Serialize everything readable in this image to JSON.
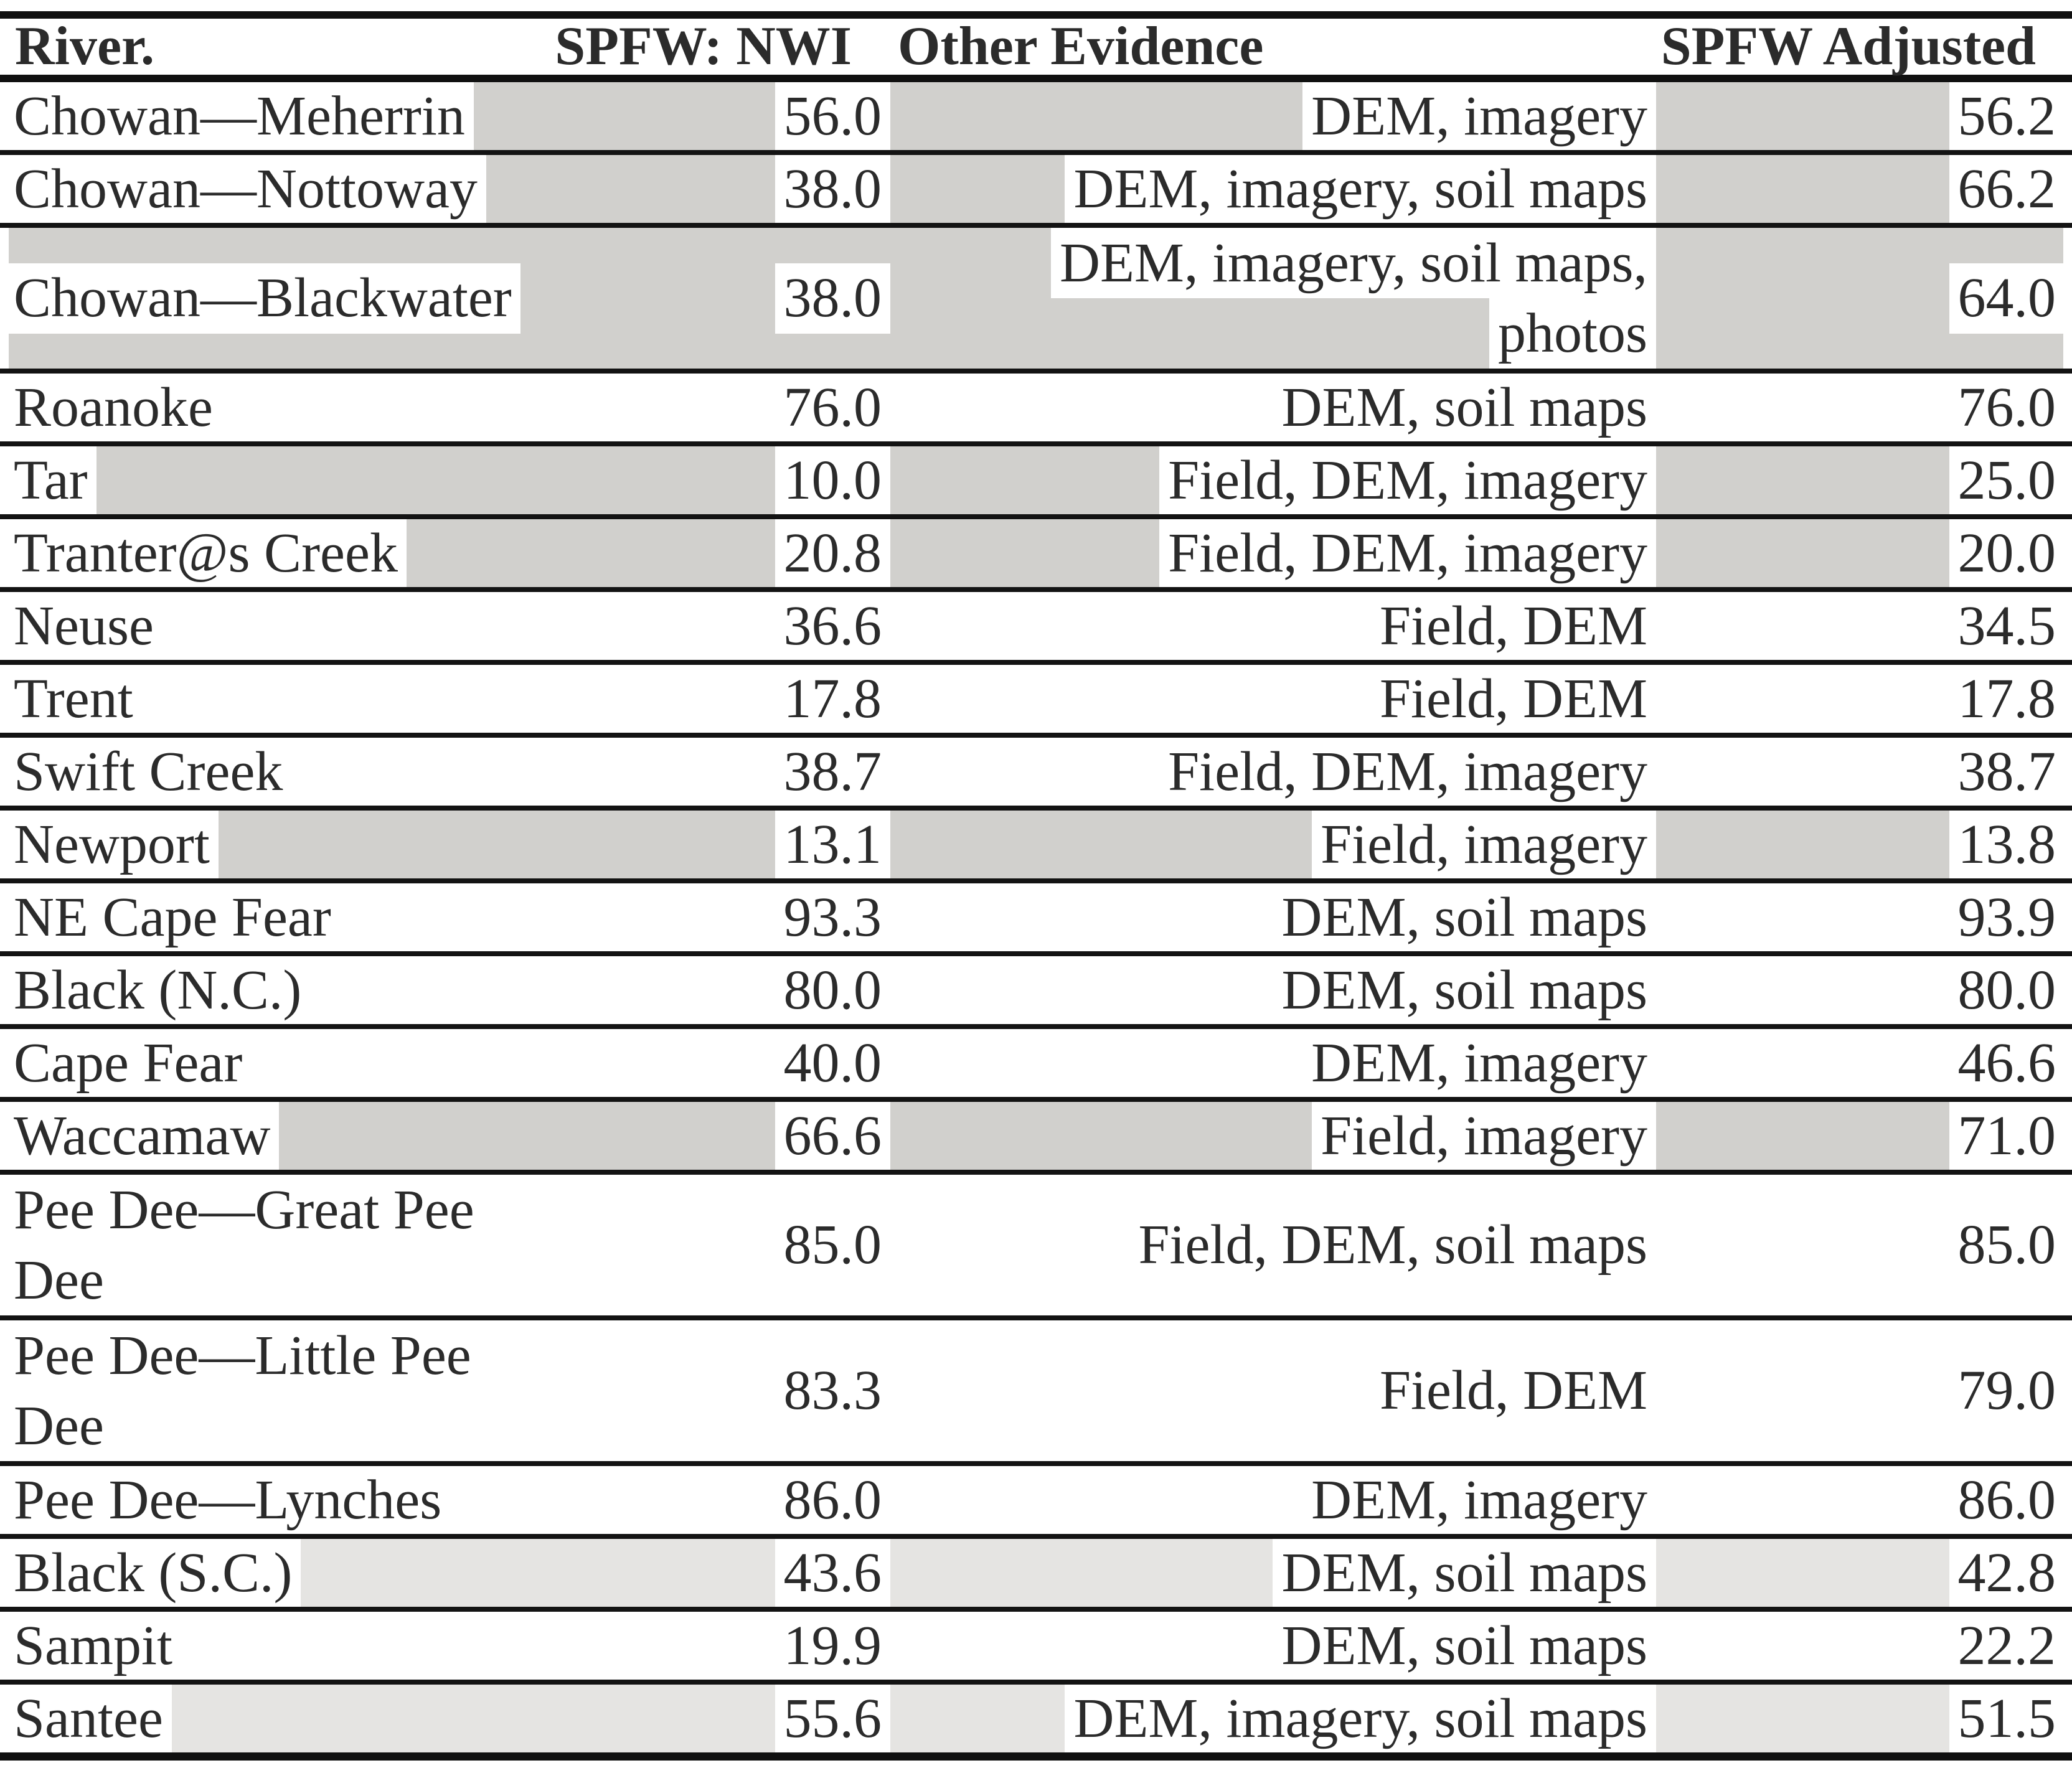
{
  "table": {
    "columns": [
      {
        "key": "river",
        "label": "River."
      },
      {
        "key": "nwi",
        "label": "SPFW: NWI"
      },
      {
        "key": "evidence",
        "label": "Other Evidence"
      },
      {
        "key": "adjusted",
        "label": "SPFW Adjusted"
      }
    ],
    "shade_colors": {
      "dark": "#d1d0cd",
      "light": "#e5e4e2",
      "none": "#ffffff"
    },
    "border_color": "#101010",
    "text_color": "#2b2b2b",
    "rows": [
      {
        "river": [
          "Chowan—Meherrin"
        ],
        "nwi": "56.0",
        "evidence": [
          "DEM, imagery"
        ],
        "adjusted": "56.2",
        "shade": "dark"
      },
      {
        "river": [
          "Chowan—Nottoway"
        ],
        "nwi": "38.0",
        "evidence": [
          "DEM, imagery, soil maps"
        ],
        "adjusted": "66.2",
        "shade": "dark"
      },
      {
        "river": [
          "Chowan—Blackwater"
        ],
        "nwi": "38.0",
        "evidence": [
          "DEM, imagery, soil maps,",
          "photos"
        ],
        "adjusted": "64.0",
        "shade": "dark"
      },
      {
        "river": [
          "Roanoke"
        ],
        "nwi": "76.0",
        "evidence": [
          "DEM, soil maps"
        ],
        "adjusted": "76.0",
        "shade": "none"
      },
      {
        "river": [
          "Tar"
        ],
        "nwi": "10.0",
        "evidence": [
          "Field, DEM, imagery"
        ],
        "adjusted": "25.0",
        "shade": "dark"
      },
      {
        "river": [
          "Tranter@s Creek"
        ],
        "nwi": "20.8",
        "evidence": [
          "Field, DEM, imagery"
        ],
        "adjusted": "20.0",
        "shade": "dark"
      },
      {
        "river": [
          "Neuse"
        ],
        "nwi": "36.6",
        "evidence": [
          "Field, DEM"
        ],
        "adjusted": "34.5",
        "shade": "none"
      },
      {
        "river": [
          "Trent"
        ],
        "nwi": "17.8",
        "evidence": [
          "Field, DEM"
        ],
        "adjusted": "17.8",
        "shade": "none"
      },
      {
        "river": [
          "Swift Creek"
        ],
        "nwi": "38.7",
        "evidence": [
          "Field, DEM, imagery"
        ],
        "adjusted": "38.7",
        "shade": "none"
      },
      {
        "river": [
          "Newport"
        ],
        "nwi": "13.1",
        "evidence": [
          "Field, imagery"
        ],
        "adjusted": "13.8",
        "shade": "dark"
      },
      {
        "river": [
          "NE Cape Fear"
        ],
        "nwi": "93.3",
        "evidence": [
          "DEM, soil maps"
        ],
        "adjusted": "93.9",
        "shade": "none"
      },
      {
        "river": [
          "Black (N.C.)"
        ],
        "nwi": "80.0",
        "evidence": [
          "DEM, soil maps"
        ],
        "adjusted": "80.0",
        "shade": "none"
      },
      {
        "river": [
          "Cape Fear"
        ],
        "nwi": "40.0",
        "evidence": [
          "DEM, imagery"
        ],
        "adjusted": "46.6",
        "shade": "none"
      },
      {
        "river": [
          "Waccamaw"
        ],
        "nwi": "66.6",
        "evidence": [
          "Field, imagery"
        ],
        "adjusted": "71.0",
        "shade": "dark"
      },
      {
        "river": [
          "Pee Dee—Great Pee",
          "Dee"
        ],
        "nwi": "85.0",
        "evidence": [
          "Field, DEM, soil maps"
        ],
        "adjusted": "85.0",
        "shade": "none"
      },
      {
        "river": [
          "Pee Dee—Little Pee",
          "Dee"
        ],
        "nwi": "83.3",
        "evidence": [
          "Field, DEM"
        ],
        "adjusted": "79.0",
        "shade": "none"
      },
      {
        "river": [
          "Pee Dee—Lynches"
        ],
        "nwi": "86.0",
        "evidence": [
          "DEM, imagery"
        ],
        "adjusted": "86.0",
        "shade": "none"
      },
      {
        "river": [
          "Black (S.C.)"
        ],
        "nwi": "43.6",
        "evidence": [
          "DEM, soil maps"
        ],
        "adjusted": "42.8",
        "shade": "light"
      },
      {
        "river": [
          "Sampit"
        ],
        "nwi": "19.9",
        "evidence": [
          "DEM, soil maps"
        ],
        "adjusted": "22.2",
        "shade": "none"
      },
      {
        "river": [
          "Santee"
        ],
        "nwi": "55.6",
        "evidence": [
          "DEM, imagery, soil maps"
        ],
        "adjusted": "51.5",
        "shade": "light"
      }
    ]
  }
}
